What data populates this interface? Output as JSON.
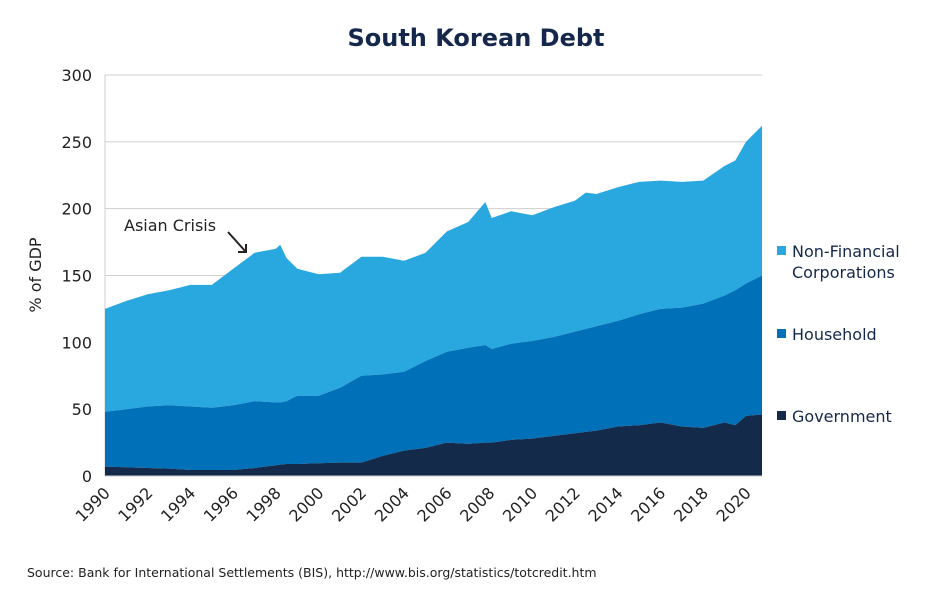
{
  "chart_data": {
    "type": "area",
    "stacked": true,
    "title": "South Korean Debt",
    "ylabel": "% of GDP",
    "xlabel": "",
    "ylim": [
      0,
      300
    ],
    "xlim": [
      1990,
      2020.75
    ],
    "yticks": [
      0,
      50,
      100,
      150,
      200,
      250,
      300
    ],
    "xticks": [
      "1990",
      "1992",
      "1994",
      "1996",
      "1998",
      "2000",
      "2002",
      "2004",
      "2006",
      "2008",
      "2010",
      "2012",
      "2014",
      "2016",
      "2018",
      "2020"
    ],
    "grid": true,
    "legend_position": "right",
    "x": [
      1990,
      1991,
      1992,
      1993,
      1994,
      1995,
      1996,
      1997,
      1998,
      1998.2,
      1998.5,
      1999,
      2000,
      2001,
      2002,
      2003,
      2004,
      2005,
      2006,
      2007,
      2007.8,
      2008.1,
      2009,
      2010,
      2011,
      2012,
      2012.5,
      2013,
      2014,
      2015,
      2016,
      2017,
      2018,
      2019,
      2019.5,
      2020,
      2020.75
    ],
    "series": [
      {
        "name": "Government",
        "color": "#132a4a",
        "values": [
          7,
          6.5,
          6,
          5.5,
          4.5,
          4.5,
          4.5,
          6,
          8,
          8.5,
          9,
          9,
          9.5,
          10,
          10,
          15,
          19,
          21,
          25,
          24,
          25,
          25,
          27,
          28,
          30,
          32,
          33,
          34,
          37,
          38,
          40,
          37,
          36,
          40,
          38,
          45,
          46
        ]
      },
      {
        "name": "Household",
        "color": "#0070b8",
        "values": [
          41,
          43.5,
          46,
          47.5,
          47.5,
          46.5,
          48.5,
          50,
          47,
          46.5,
          47,
          51,
          50.5,
          56,
          65,
          61,
          59,
          65,
          68,
          72,
          73,
          70,
          72,
          73,
          74,
          76,
          77,
          78,
          79,
          83,
          85,
          89,
          93,
          95,
          101,
          99,
          104
        ]
      },
      {
        "name": "Non-Financial Corporations",
        "color": "#29a8e0",
        "values": [
          77,
          81,
          84,
          86,
          91,
          92,
          102,
          111,
          115,
          118,
          107,
          95,
          91,
          86,
          89,
          88,
          83,
          81,
          90,
          94,
          107,
          98,
          99,
          94,
          97,
          98,
          102,
          99,
          100,
          99,
          96,
          94,
          92,
          97,
          97,
          106,
          112
        ]
      }
    ],
    "legend": [
      "Non-Financial",
      "Corporations",
      "Household",
      "Government"
    ],
    "annotations": [
      {
        "text": "Asian Crisis",
        "x": 1997,
        "y": 160
      }
    ],
    "source": "Source: Bank for International Settlements (BIS), http://www.bis.org/statistics/totcredit.htm"
  }
}
